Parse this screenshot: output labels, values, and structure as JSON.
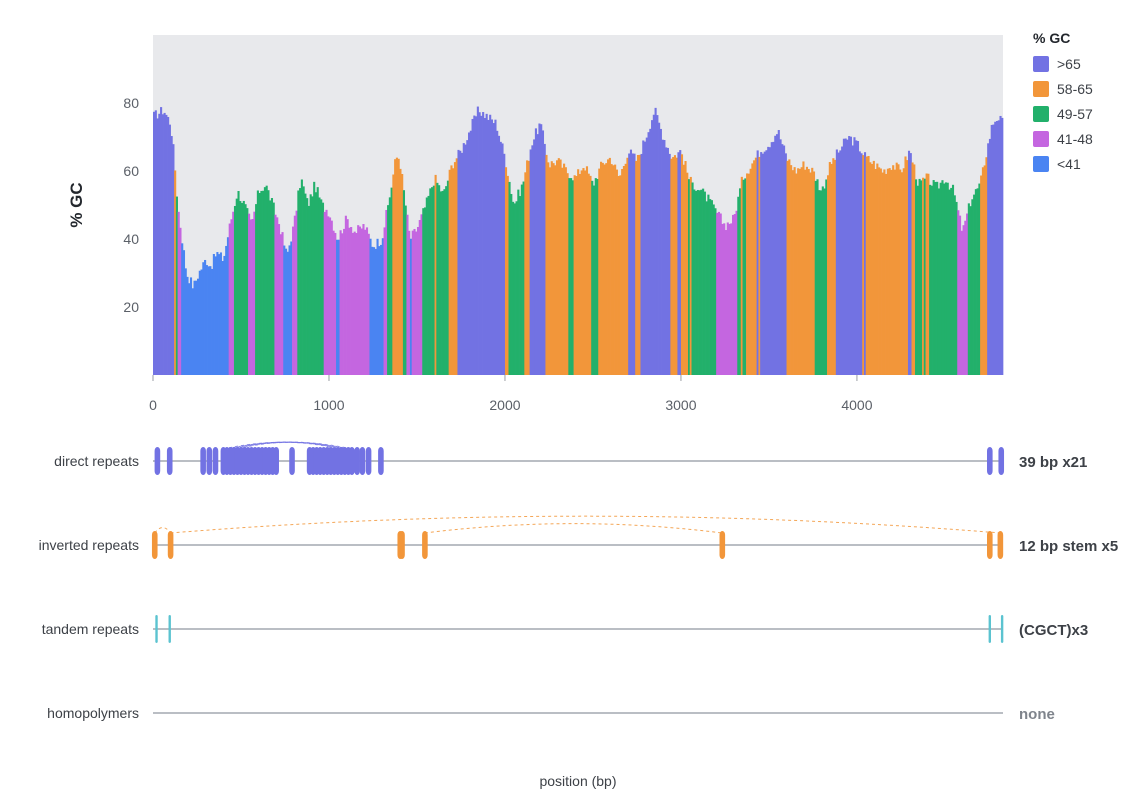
{
  "chart_data": {
    "type": "area",
    "ylabel": "% GC",
    "xlabel": "position (bp)",
    "xlim": [
      0,
      4830
    ],
    "ylim": [
      0,
      100
    ],
    "x_ticks": [
      0,
      1000,
      2000,
      3000,
      4000
    ],
    "y_ticks": [
      20,
      40,
      60,
      80
    ],
    "plot_background": "#e8e9ec",
    "legend": {
      "title": "% GC",
      "placement": "top-right",
      "items": [
        {
          "label": ">65",
          "color": "#7272e3",
          "min": 65,
          "max": 100
        },
        {
          "label": "58-65",
          "color": "#f2963a",
          "min": 58,
          "max": 65
        },
        {
          "label": "49-57",
          "color": "#22b06b",
          "min": 49,
          "max": 58
        },
        {
          "label": "41-48",
          "color": "#c466e0",
          "min": 41,
          "max": 49
        },
        {
          "label": "<41",
          "color": "#4a84f2",
          "min": 0,
          "max": 41
        }
      ]
    },
    "gc_profile": {
      "step_bp": 10,
      "anchors": [
        [
          0,
          76
        ],
        [
          60,
          78
        ],
        [
          100,
          74
        ],
        [
          120,
          64
        ],
        [
          140,
          50
        ],
        [
          160,
          42
        ],
        [
          190,
          30
        ],
        [
          230,
          26
        ],
        [
          260,
          30
        ],
        [
          300,
          34
        ],
        [
          330,
          32
        ],
        [
          360,
          36
        ],
        [
          400,
          34
        ],
        [
          440,
          45
        ],
        [
          480,
          54
        ],
        [
          520,
          50
        ],
        [
          560,
          44
        ],
        [
          600,
          54
        ],
        [
          640,
          56
        ],
        [
          680,
          50
        ],
        [
          720,
          44
        ],
        [
          760,
          35
        ],
        [
          800,
          44
        ],
        [
          840,
          58
        ],
        [
          880,
          50
        ],
        [
          920,
          56
        ],
        [
          960,
          50
        ],
        [
          1000,
          48
        ],
        [
          1050,
          40
        ],
        [
          1100,
          46
        ],
        [
          1150,
          42
        ],
        [
          1200,
          44
        ],
        [
          1250,
          38
        ],
        [
          1300,
          40
        ],
        [
          1350,
          54
        ],
        [
          1380,
          64
        ],
        [
          1400,
          64
        ],
        [
          1430,
          52
        ],
        [
          1460,
          40
        ],
        [
          1500,
          43
        ],
        [
          1550,
          50
        ],
        [
          1600,
          58
        ],
        [
          1650,
          53
        ],
        [
          1700,
          62
        ],
        [
          1750,
          66
        ],
        [
          1800,
          72
        ],
        [
          1850,
          78
        ],
        [
          1900,
          76
        ],
        [
          1950,
          74
        ],
        [
          2000,
          64
        ],
        [
          2050,
          50
        ],
        [
          2100,
          56
        ],
        [
          2150,
          68
        ],
        [
          2200,
          74
        ],
        [
          2250,
          62
        ],
        [
          2300,
          63
        ],
        [
          2350,
          60
        ],
        [
          2400,
          58
        ],
        [
          2450,
          62
        ],
        [
          2500,
          56
        ],
        [
          2550,
          62
        ],
        [
          2600,
          64
        ],
        [
          2650,
          58
        ],
        [
          2700,
          66
        ],
        [
          2750,
          63
        ],
        [
          2800,
          70
        ],
        [
          2850,
          78
        ],
        [
          2900,
          70
        ],
        [
          2950,
          64
        ],
        [
          3000,
          66
        ],
        [
          3050,
          57
        ],
        [
          3100,
          55
        ],
        [
          3150,
          52
        ],
        [
          3200,
          48
        ],
        [
          3250,
          44
        ],
        [
          3300,
          46
        ],
        [
          3350,
          58
        ],
        [
          3400,
          62
        ],
        [
          3450,
          66
        ],
        [
          3500,
          68
        ],
        [
          3550,
          72
        ],
        [
          3600,
          64
        ],
        [
          3650,
          60
        ],
        [
          3700,
          62
        ],
        [
          3750,
          60
        ],
        [
          3800,
          54
        ],
        [
          3850,
          62
        ],
        [
          3900,
          66
        ],
        [
          3950,
          70
        ],
        [
          4000,
          68
        ],
        [
          4050,
          64
        ],
        [
          4100,
          62
        ],
        [
          4150,
          60
        ],
        [
          4200,
          62
        ],
        [
          4250,
          60
        ],
        [
          4300,
          66
        ],
        [
          4350,
          56
        ],
        [
          4400,
          58
        ],
        [
          4450,
          55
        ],
        [
          4500,
          58
        ],
        [
          4550,
          54
        ],
        [
          4600,
          42
        ],
        [
          4650,
          52
        ],
        [
          4700,
          56
        ],
        [
          4730,
          64
        ],
        [
          4770,
          74
        ],
        [
          4800,
          76
        ],
        [
          4830,
          74
        ]
      ]
    },
    "tracks": [
      {
        "name": "direct repeats",
        "summary": "39 bp x21",
        "summary_color": "#3d4147",
        "color": "#7272e3",
        "mark": "oval",
        "positions": [
          25,
          95,
          285,
          320,
          355,
          400,
          420,
          440,
          460,
          480,
          500,
          520,
          540,
          560,
          580,
          600,
          620,
          640,
          660,
          680,
          700,
          790,
          890,
          910,
          930,
          950,
          970,
          990,
          1010,
          1030,
          1050,
          1070,
          1090,
          1110,
          1130,
          1160,
          1190,
          1225,
          1295,
          4755,
          4820
        ],
        "links": [
          [
            400,
            1130
          ],
          [
            420,
            1110
          ],
          [
            440,
            1090
          ],
          [
            460,
            1070
          ],
          [
            480,
            1050
          ]
        ]
      },
      {
        "name": "inverted repeats",
        "summary": "12 bp stem x5",
        "summary_color": "#3d4147",
        "color": "#f2963a",
        "mark": "oval",
        "positions": [
          10,
          100,
          1405,
          1415,
          1545,
          3235,
          4755,
          4815
        ],
        "links": [
          [
            10,
            100
          ],
          [
            100,
            4815
          ],
          [
            1545,
            3235
          ]
        ]
      },
      {
        "name": "tandem repeats",
        "summary": "(CGCT)x3",
        "summary_color": "#3d4147",
        "color": "#5bc3d0",
        "mark": "tick",
        "positions": [
          20,
          95,
          4755,
          4825
        ],
        "links": []
      },
      {
        "name": "homopolymers",
        "summary": "none",
        "summary_color": "#7f848c",
        "color": "#5bc3d0",
        "mark": "tick",
        "positions": [],
        "links": []
      }
    ]
  }
}
